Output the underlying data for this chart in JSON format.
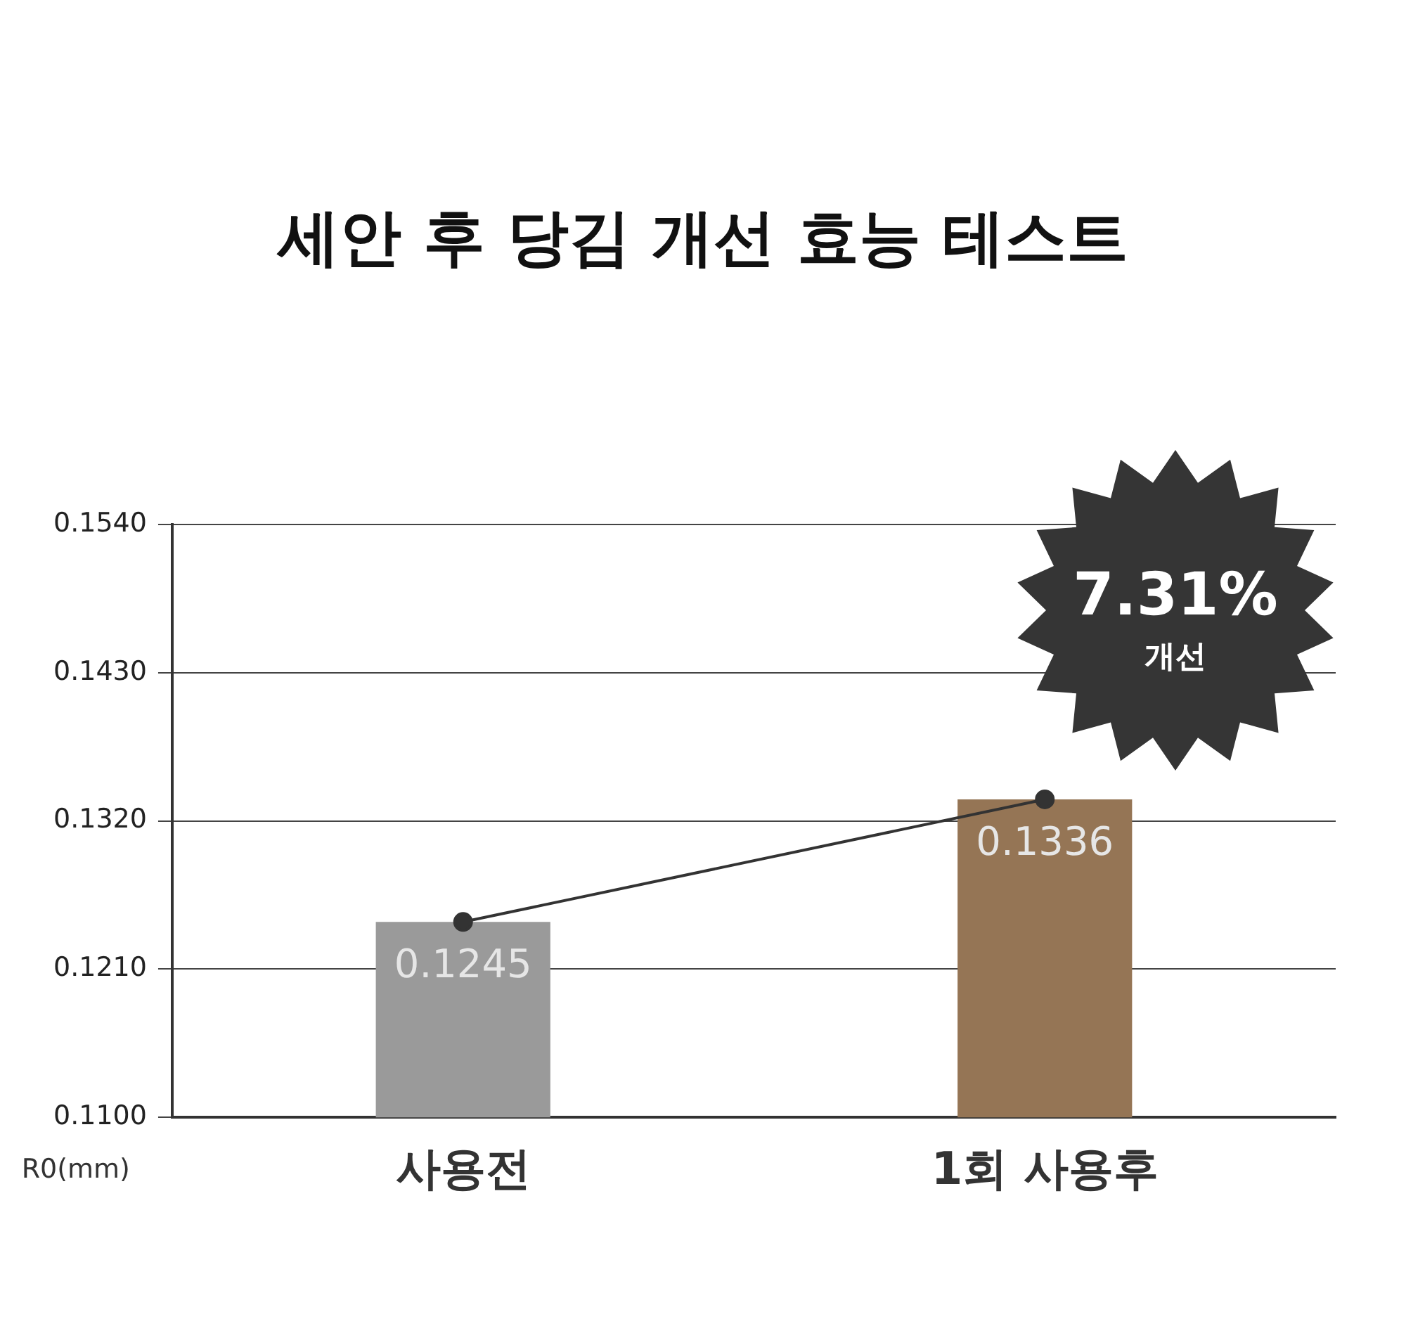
{
  "chart_data": {
    "type": "bar",
    "title": "세안 후 당김 개선 효능 테스트",
    "ylabel": "R0(mm)",
    "categories": [
      "사용전",
      "1회 사용후"
    ],
    "series": [
      {
        "colors": [
          "#9a9a9a",
          "#957555"
        ],
        "values": [
          0.1245,
          0.1336
        ],
        "value_labels": [
          "0.1245",
          "0.1336"
        ]
      },
      {
        "type": "line",
        "color": "#333333",
        "values": [
          0.1245,
          0.1336
        ]
      }
    ],
    "ylim": [
      0.11,
      0.154
    ],
    "yticks": [
      {
        "value": 0.11,
        "label": "0.1100"
      },
      {
        "value": 0.121,
        "label": "0.1210"
      },
      {
        "value": 0.132,
        "label": "0.1320"
      },
      {
        "value": 0.143,
        "label": "0.1430"
      },
      {
        "value": 0.154,
        "label": "0.1540"
      }
    ],
    "grid": "y",
    "marker": "circle",
    "line_style": "solid",
    "annotations": [
      "7.31%",
      "개선"
    ]
  }
}
